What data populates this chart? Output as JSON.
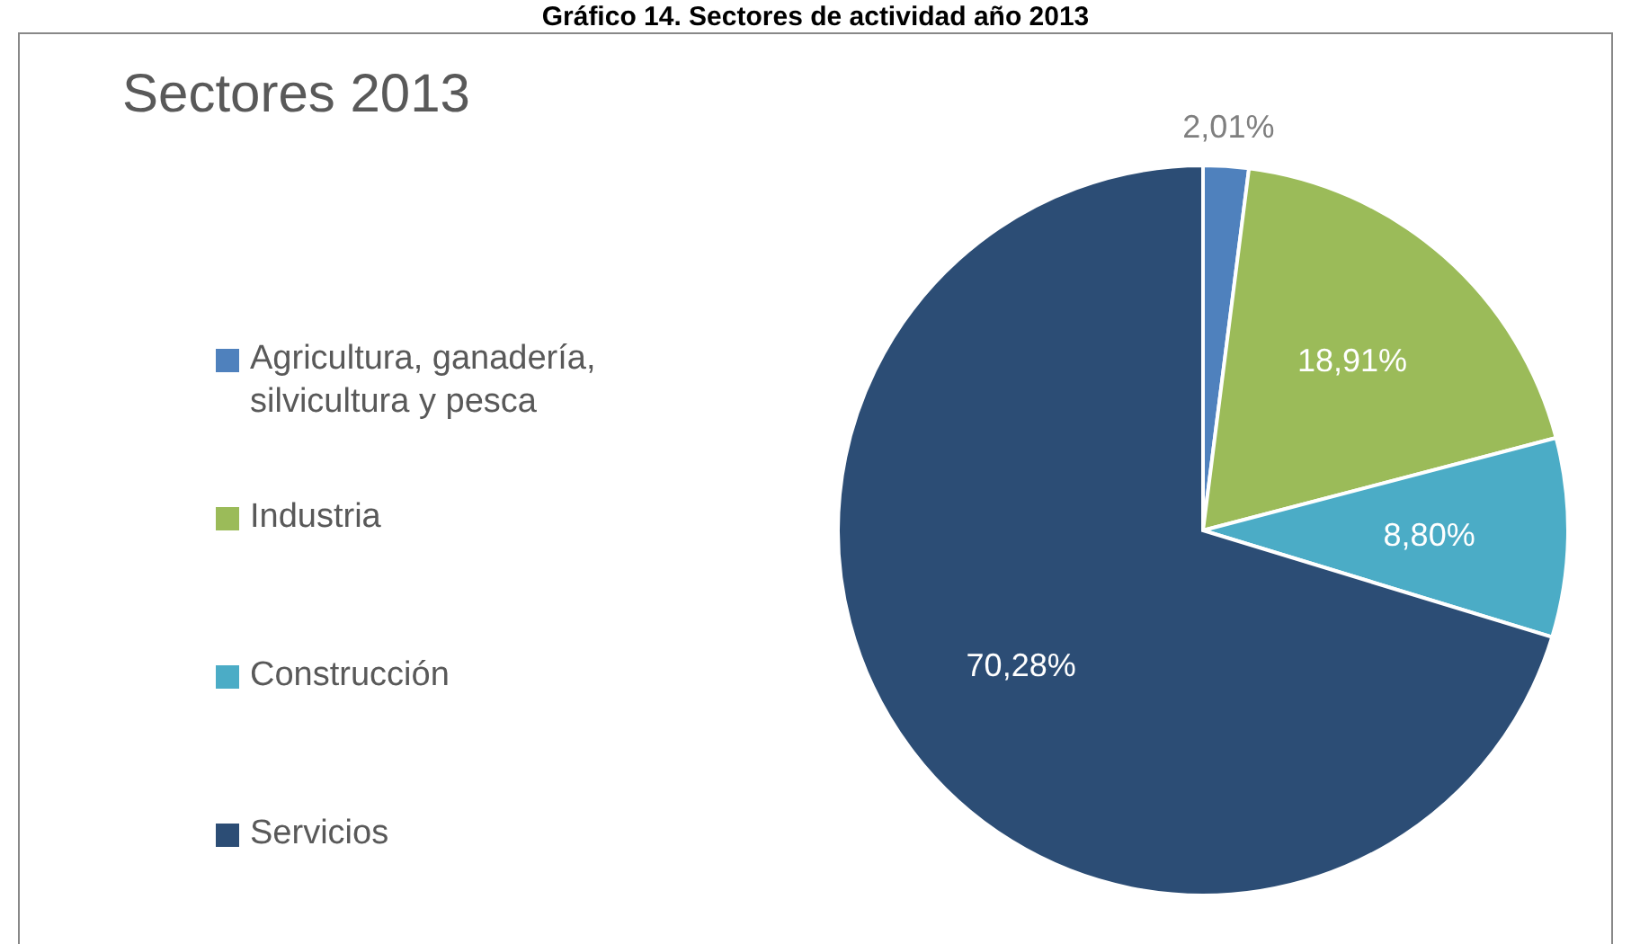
{
  "chart_data": {
    "type": "pie",
    "title": "Gráfico 14. Sectores de actividad año 2013",
    "subtitle": "Sectores 2013",
    "categories": [
      "Agricultura, ganadería, silvicultura y pesca",
      "Industria",
      "Construcción",
      "Servicios"
    ],
    "values": [
      2.01,
      18.91,
      8.8,
      70.28
    ],
    "colors": [
      "#4f81bd",
      "#9bbb59",
      "#4bacc6",
      "#2c4d75"
    ],
    "value_labels": [
      "2,01%",
      "18,91%",
      "8,80%",
      "70,28%"
    ],
    "legend": "left"
  }
}
